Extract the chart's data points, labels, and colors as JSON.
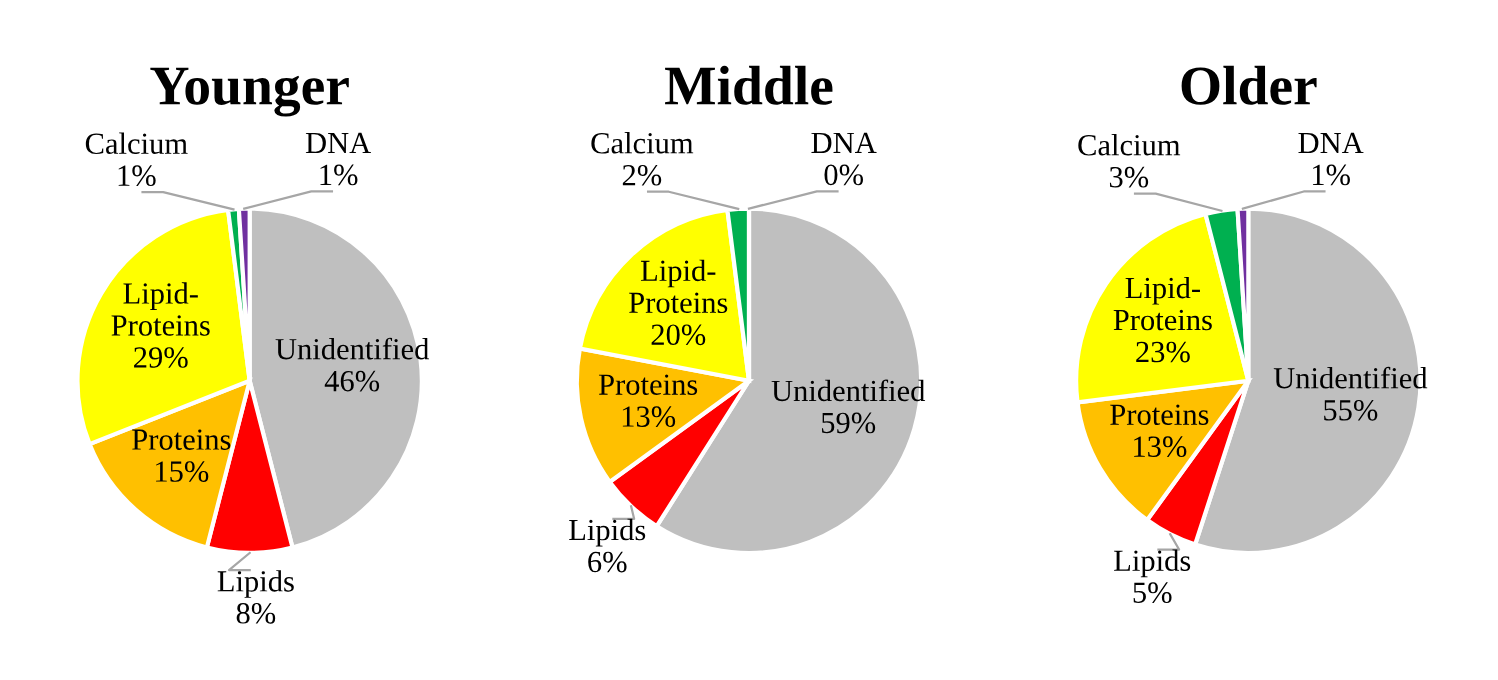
{
  "chart_data": [
    {
      "type": "pie",
      "title": "Younger",
      "categories": [
        "Unidentified",
        "Lipids",
        "Proteins",
        "Lipid-Proteins",
        "Calcium",
        "DNA"
      ],
      "values": [
        46,
        8,
        15,
        29,
        1,
        1
      ],
      "value_labels": [
        "46%",
        "8%",
        "15%",
        "29%",
        "1%",
        "1%"
      ],
      "colors": [
        "#bfbfbf",
        "#ff0000",
        "#ffc000",
        "#ffff00",
        "#00b050",
        "#7030a0"
      ]
    },
    {
      "type": "pie",
      "title": "Middle",
      "categories": [
        "Unidentified",
        "Lipids",
        "Proteins",
        "Lipid-Proteins",
        "Calcium",
        "DNA"
      ],
      "values": [
        59,
        6,
        13,
        20,
        2,
        0
      ],
      "value_labels": [
        "59%",
        "6%",
        "13%",
        "20%",
        "2%",
        "0%"
      ],
      "colors": [
        "#bfbfbf",
        "#ff0000",
        "#ffc000",
        "#ffff00",
        "#00b050",
        "#7030a0"
      ]
    },
    {
      "type": "pie",
      "title": "Older",
      "categories": [
        "Unidentified",
        "Lipids",
        "Proteins",
        "Lipid-Proteins",
        "Calcium",
        "DNA"
      ],
      "values": [
        55,
        5,
        13,
        23,
        3,
        1
      ],
      "value_labels": [
        "55%",
        "5%",
        "13%",
        "23%",
        "3%",
        "1%"
      ],
      "colors": [
        "#bfbfbf",
        "#ff0000",
        "#ffc000",
        "#ffff00",
        "#00b050",
        "#7030a0"
      ]
    }
  ]
}
